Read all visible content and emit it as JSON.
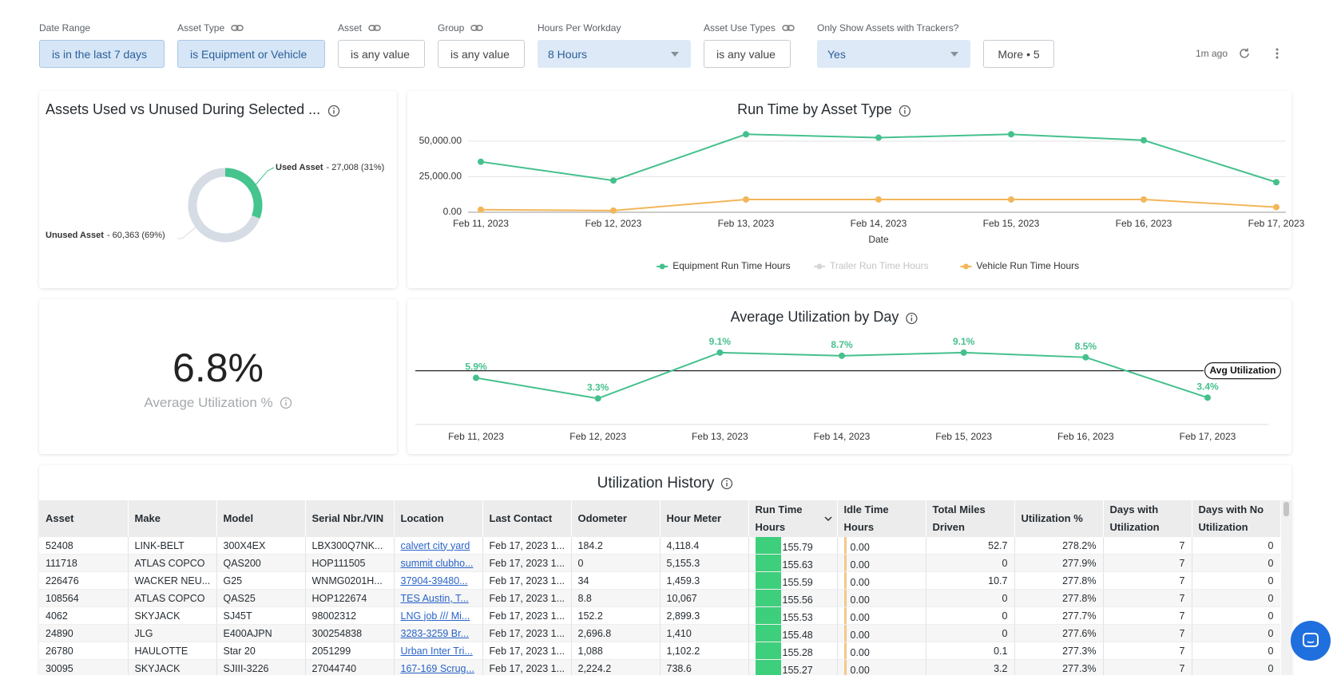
{
  "filters": [
    {
      "label": "Date Range",
      "value": "is in the last 7 days",
      "active": true,
      "link": false,
      "dropdown": false,
      "width": 157
    },
    {
      "label": "Asset Type",
      "value": "is Equipment or Vehicle",
      "active": true,
      "link": true,
      "dropdown": false,
      "width": 185
    },
    {
      "label": "Asset",
      "value": "is any value",
      "active": false,
      "link": true,
      "dropdown": false,
      "width": 109
    },
    {
      "label": "Group",
      "value": "is any value",
      "active": false,
      "link": true,
      "dropdown": false,
      "width": 109
    },
    {
      "label": "Hours Per Workday",
      "value": "8 Hours",
      "active": true,
      "link": false,
      "dropdown": true,
      "width": 192
    },
    {
      "label": "Asset Use Types",
      "value": "is any value",
      "active": false,
      "link": true,
      "dropdown": false,
      "width": 109
    },
    {
      "label": "Only Show Assets with Trackers?",
      "value": "Yes",
      "active": true,
      "link": false,
      "dropdown": true,
      "width": 192
    }
  ],
  "more_button": "More • 5",
  "last_updated": "1m ago",
  "chart_data": [
    {
      "type": "donut",
      "title": "Assets Used vs Unused During Selected ...",
      "categories": [
        "Used Asset",
        "Unused Asset"
      ],
      "values": [
        27008,
        60363
      ],
      "value_labels": [
        "- 27,008 (31%)",
        "- 60,363 (69%)"
      ],
      "colors": [
        "#45c48d",
        "#d6dce4"
      ]
    },
    {
      "type": "line",
      "title": "Run Time by Asset Type",
      "x_label": "Date",
      "categories": [
        "Feb 11, 2023",
        "Feb 12, 2023",
        "Feb 13, 2023",
        "Feb 14, 2023",
        "Feb 15, 2023",
        "Feb 16, 2023",
        "Feb 17, 2023"
      ],
      "ylim": [
        0,
        60000
      ],
      "yticks": [
        {
          "value": 0,
          "label": "0.00"
        },
        {
          "value": 25000,
          "label": "25,000.00"
        },
        {
          "value": 50000,
          "label": "50,000.00"
        }
      ],
      "grid": true,
      "legend": "bottom",
      "series": [
        {
          "name": "Equipment Run Time Hours",
          "color": "#45c08d",
          "values": [
            35500,
            22300,
            54800,
            52400,
            54800,
            50600,
            21100
          ]
        },
        {
          "name": "Trailer Run Time Hours",
          "color": "#cfcfcf",
          "hidden": true,
          "values": [
            null,
            null,
            null,
            null,
            null,
            null,
            null
          ]
        },
        {
          "name": "Vehicle Run Time Hours",
          "color": "#f2b65a",
          "values": [
            1800,
            1200,
            9000,
            9000,
            9000,
            9000,
            3600
          ]
        }
      ]
    },
    {
      "type": "line",
      "title": "Average Utilization by Day",
      "categories": [
        "Feb 11, 2023",
        "Feb 12, 2023",
        "Feb 13, 2023",
        "Feb 14, 2023",
        "Feb 15, 2023",
        "Feb 16, 2023",
        "Feb 17, 2023"
      ],
      "ylim": [
        0,
        10.5
      ],
      "series": [
        {
          "color": "#45c08d",
          "values": [
            5.9,
            3.3,
            9.1,
            8.7,
            9.1,
            8.5,
            3.4
          ],
          "value_labels": [
            "5.9%",
            "3.3%",
            "9.1%",
            "8.7%",
            "9.1%",
            "8.5%",
            "3.4%"
          ]
        }
      ],
      "reference_line": {
        "value": 6.8,
        "label": "Avg Utilization"
      }
    }
  ],
  "kpi": {
    "value": "6.8%",
    "label": "Average Utilization %"
  },
  "table": {
    "title": "Utilization History",
    "columns": [
      "Asset",
      "Make",
      "Model",
      "Serial Nbr./VIN",
      "Location",
      "Last Contact",
      "Odometer",
      "Hour Meter",
      "Run Time Hours",
      "Idle Time Hours",
      "Total Miles Driven",
      "Utilization %",
      "Days with Utilization",
      "Days with No Utilization"
    ],
    "rows": [
      [
        "52408",
        "LINK-BELT",
        "300X4EX",
        "LBX300Q7NK...",
        "calvert city yard",
        "Feb 17, 2023 1...",
        "184.2",
        "4,118.4",
        "155.79",
        "0.00",
        "52.7",
        "278.2%",
        "7",
        "0"
      ],
      [
        "111718",
        "ATLAS COPCO",
        "QAS200",
        "HOP111505",
        "summit clubho...",
        "Feb 17, 2023 1...",
        "0",
        "5,155.3",
        "155.63",
        "0.00",
        "0",
        "277.9%",
        "7",
        "0"
      ],
      [
        "226476",
        "WACKER NEU...",
        "G25",
        "WNMG0201H...",
        "37904-39480...",
        "Feb 17, 2023 1...",
        "34",
        "1,459.3",
        "155.59",
        "0.00",
        "10.7",
        "277.8%",
        "7",
        "0"
      ],
      [
        "108564",
        "ATLAS COPCO",
        "QAS25",
        "HOP122674",
        "TES Austin, T...",
        "Feb 17, 2023 1...",
        "8.8",
        "10,067",
        "155.56",
        "0.00",
        "0",
        "277.8%",
        "7",
        "0"
      ],
      [
        "4062",
        "SKYJACK",
        "SJ45T",
        "98002312",
        "LNG job /// Mi...",
        "Feb 17, 2023 1...",
        "152.2",
        "2,899.3",
        "155.53",
        "0.00",
        "0",
        "277.7%",
        "7",
        "0"
      ],
      [
        "24890",
        "JLG",
        "E400AJPN",
        "300254838",
        "3283-3259 Br...",
        "Feb 17, 2023 1...",
        "2,696.8",
        "1,410",
        "155.48",
        "0.00",
        "0",
        "277.6%",
        "7",
        "0"
      ],
      [
        "26780",
        "HAULOTTE",
        "Star 20",
        "2051299",
        "Urban Inter Tri...",
        "Feb 17, 2023 1...",
        "1,088",
        "1,102.2",
        "155.28",
        "0.00",
        "0.1",
        "277.3%",
        "7",
        "0"
      ],
      [
        "30095",
        "SKYJACK",
        "SJIII-3226",
        "27044740",
        "167-169 Scrug...",
        "Feb 17, 2023 1...",
        "2,224.2",
        "738.6",
        "155.27",
        "0.00",
        "3.2",
        "277.3%",
        "7",
        "0"
      ]
    ]
  }
}
